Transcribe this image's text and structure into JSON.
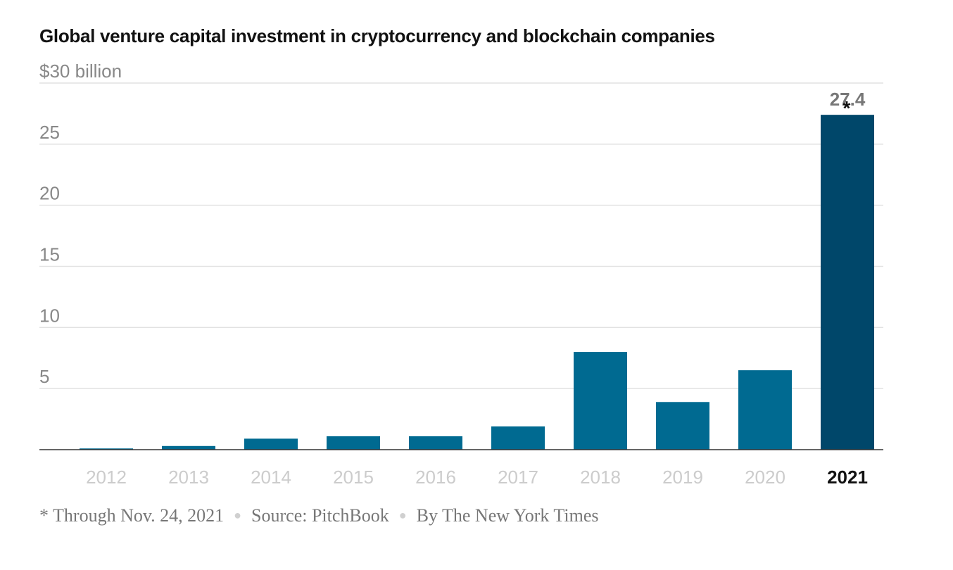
{
  "chart_data": {
    "type": "bar",
    "title": "Global venture capital investment in cryptocurrency and blockchain companies",
    "ylabel": "$30 billion",
    "xlabel": "",
    "ylim": [
      0,
      30
    ],
    "yticks": [
      5,
      10,
      15,
      20,
      25,
      30
    ],
    "ytick_labels": [
      "5",
      "10",
      "15",
      "20",
      "25",
      "$30 billion"
    ],
    "categories": [
      "2012",
      "2013",
      "2014",
      "2015",
      "2016",
      "2017",
      "2018",
      "2019",
      "2020",
      "2021"
    ],
    "values": [
      0.1,
      0.3,
      0.9,
      1.1,
      1.1,
      1.9,
      8.0,
      3.9,
      6.5,
      27.4
    ],
    "highlight": "2021",
    "data_labels": [
      {
        "category": "2021",
        "text": "27.4",
        "asterisk": "*"
      }
    ],
    "grid": true,
    "colors": {
      "bar": "#006a91",
      "highlight": "#00476a",
      "grid": "#e2e2e2",
      "axis": "#333333"
    }
  },
  "footer": {
    "note": "* Through Nov. 24, 2021",
    "source": "Source: PitchBook",
    "credit": "By The New York Times"
  }
}
